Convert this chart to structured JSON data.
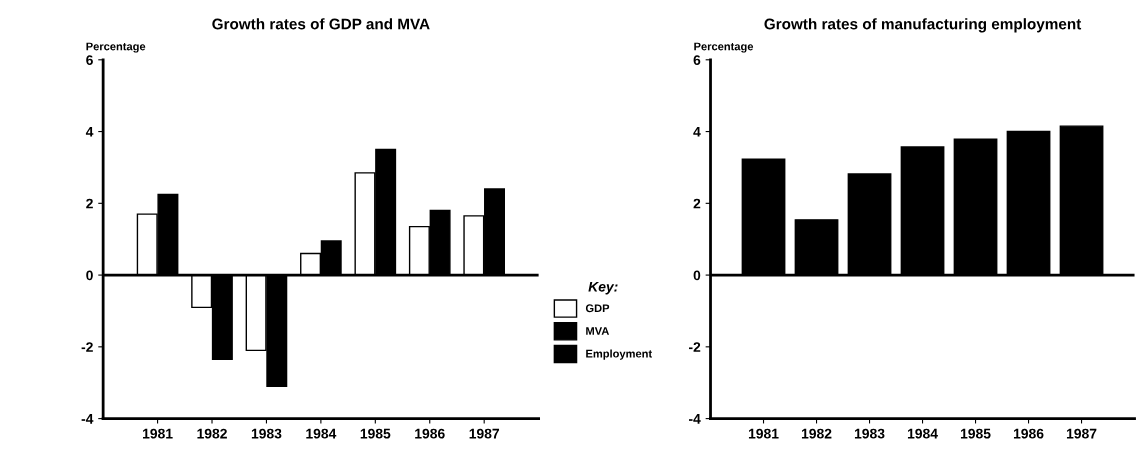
{
  "chart_data": [
    {
      "type": "bar",
      "title": "Growth rates of GDP and MVA",
      "ylabel": "Percentage",
      "categories": [
        "1981",
        "1982",
        "1983",
        "1984",
        "1985",
        "1986",
        "1987"
      ],
      "series": [
        {
          "name": "GDP",
          "color": "#ffffff",
          "values": [
            1.7,
            -0.9,
            -2.1,
            0.6,
            2.85,
            1.35,
            1.65
          ]
        },
        {
          "name": "MVA",
          "color": "#000000",
          "values": [
            2.25,
            -2.35,
            -3.1,
            0.95,
            3.5,
            1.8,
            2.4
          ]
        }
      ],
      "ylim": [
        -4,
        6
      ],
      "yticks": [
        -4,
        -2,
        0,
        2,
        4,
        6
      ],
      "ref_lines": [
        {
          "axis": "y",
          "value": 0
        }
      ],
      "legend": "right",
      "legend_title": "Key:",
      "grid": false
    },
    {
      "type": "bar",
      "title": "Growth rates of manufacturing employment",
      "ylabel": "Percentage",
      "categories": [
        "1981",
        "1982",
        "1983",
        "1984",
        "1985",
        "1986",
        "1987"
      ],
      "series": [
        {
          "name": "Employment",
          "color": "#000000",
          "values": [
            3.23,
            1.54,
            2.82,
            3.57,
            3.79,
            4.0,
            4.15
          ]
        }
      ],
      "ylim": [
        -4,
        6
      ],
      "yticks": [
        -4,
        -2,
        0,
        2,
        4,
        6
      ],
      "ref_lines": [
        {
          "axis": "y",
          "value": 0
        }
      ],
      "grid": false
    }
  ]
}
